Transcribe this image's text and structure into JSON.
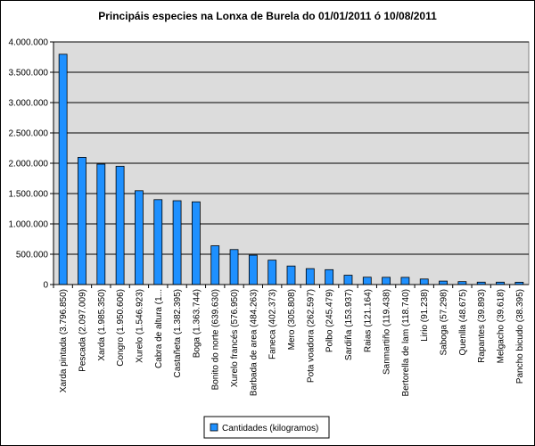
{
  "chart_data": {
    "type": "bar",
    "title": "Principáis especies na Lonxa de Burela do 01/01/2011 ó 10/08/2011",
    "xlabel": "",
    "ylabel": "",
    "ylim": [
      0,
      4000000
    ],
    "yticks": [
      "0",
      "500.000",
      "1.000.000",
      "1.500.000",
      "2.000.000",
      "2.500.000",
      "3.000.000",
      "3.500.000",
      "4.000.000"
    ],
    "grid": true,
    "legend_position": "bottom",
    "colors": {
      "bar": "#1E90FF",
      "plot_background": "#DCDCDC",
      "gridline": "#000000"
    },
    "categories": [
      "Xarda pintada  (3.796.850)",
      "Pescada  (2.097.009)",
      "Xarda  (1.985.350)",
      "Congro  (1.950.606)",
      "Xurelo  (1.546.923)",
      "Cabra de altura  (1...",
      "Castañeta  (1.382.395)",
      "Boga  (1.363.744)",
      "Bonito do norte  (639.630)",
      "Xurelo francés  (576.950)",
      "Barbada de area  (484.263)",
      "Faneca  (402.373)",
      "Mero  (305.808)",
      "Pota voadora  (262.597)",
      "Polbo  (245.479)",
      "Sardiña  (153.937)",
      "Raias  (121.164)",
      "Sanmartiño  (119.438)",
      "Bertorella de lam  (118.740)",
      "Lirio  (91.238)",
      "Saboga  (57.298)",
      "Quenlla  (48.675)",
      "Rapantes  (39.893)",
      "Melgacho  (39.618)",
      "Pancho bicudo  (38.395)"
    ],
    "series": [
      {
        "name": "Cantidades (kilogramos)",
        "values": [
          3796850,
          2097009,
          1985350,
          1950606,
          1546923,
          1400000,
          1382395,
          1363744,
          639630,
          576950,
          484263,
          402373,
          305808,
          262597,
          245479,
          153937,
          121164,
          119438,
          118740,
          91238,
          57298,
          48675,
          39893,
          39618,
          38395
        ]
      }
    ]
  }
}
